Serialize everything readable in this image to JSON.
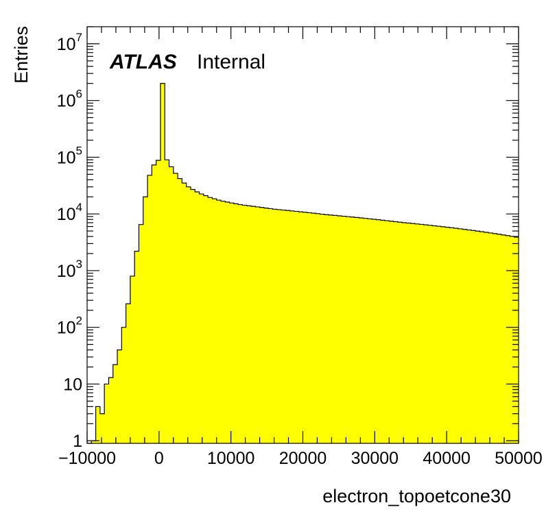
{
  "chart_data": {
    "type": "histogram",
    "xlabel": "electron_topoetcone30",
    "ylabel": "Entries",
    "xlim": [
      -10000,
      50000
    ],
    "ylim": [
      0.9,
      20000000
    ],
    "y_scale": "log",
    "fill_color": "#ffff00",
    "line_color": "#000000",
    "bin_width": 600,
    "x_start": -10000,
    "x_ticks": [
      -10000,
      0,
      10000,
      20000,
      30000,
      40000,
      50000
    ],
    "x_tick_labels": [
      "−10000",
      "0",
      "10000",
      "20000",
      "30000",
      "40000",
      "50000"
    ],
    "y_ticks": [
      {
        "value": 1,
        "base": "1",
        "exp": ""
      },
      {
        "value": 10,
        "base": "10",
        "exp": ""
      },
      {
        "value": 100,
        "base": "10",
        "exp": "2"
      },
      {
        "value": 1000,
        "base": "10",
        "exp": "3"
      },
      {
        "value": 10000,
        "base": "10",
        "exp": "4"
      },
      {
        "value": 100000,
        "base": "10",
        "exp": "5"
      },
      {
        "value": 1000000,
        "base": "10",
        "exp": "6"
      },
      {
        "value": 10000000,
        "base": "10",
        "exp": "7"
      }
    ],
    "bin_contents": [
      0,
      1,
      4,
      3,
      10,
      13,
      22,
      40,
      100,
      260,
      800,
      2200,
      6500,
      20000,
      48000,
      73000,
      88000,
      2000000,
      90000,
      68000,
      52000,
      42000,
      35000,
      30000,
      27000,
      24500,
      22500,
      21000,
      19500,
      18500,
      17500,
      16800,
      16200,
      15600,
      15100,
      14600,
      14200,
      13900,
      13600,
      13300,
      13000,
      12700,
      12400,
      12100,
      11900,
      11700,
      11500,
      11300,
      11100,
      10900,
      10700,
      10500,
      10300,
      10100,
      9900,
      9700,
      9550,
      9400,
      9250,
      9100,
      8950,
      8800,
      8650,
      8500,
      8350,
      8200,
      8050,
      7900,
      7750,
      7600,
      7450,
      7300,
      7150,
      7000,
      6900,
      6780,
      6660,
      6540,
      6420,
      6300,
      6180,
      6060,
      5940,
      5820,
      5700,
      5580,
      5460,
      5340,
      5220,
      5100,
      4980,
      4860,
      4740,
      4620,
      4500,
      4380,
      4260,
      4140,
      4020,
      3900
    ]
  },
  "annotation": {
    "experiment": "ATLAS",
    "status": "Internal"
  }
}
